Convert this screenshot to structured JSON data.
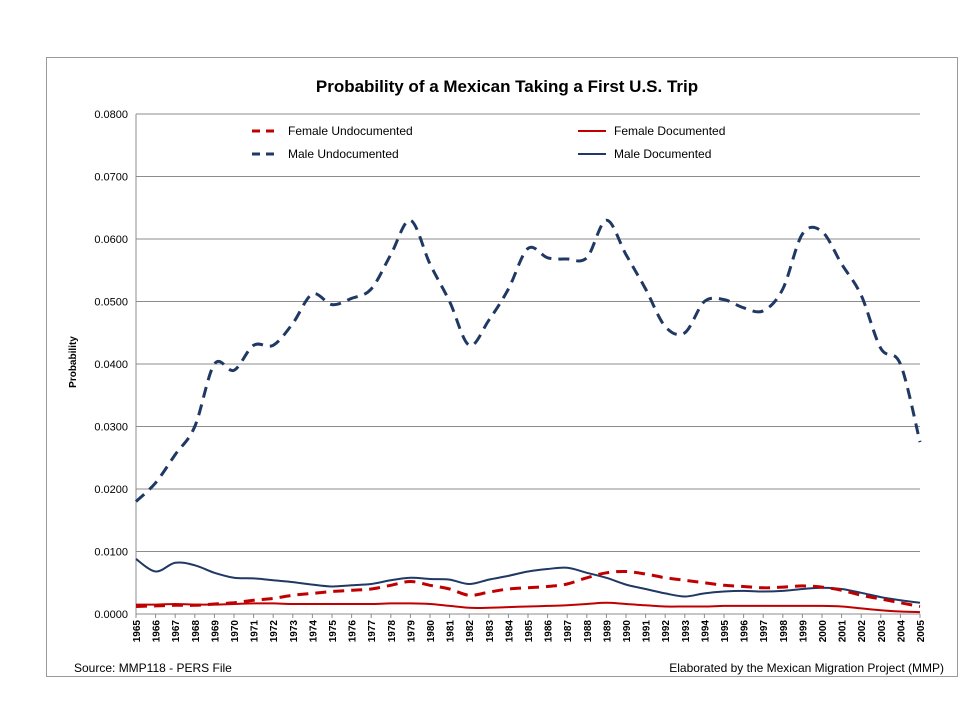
{
  "chart_data": {
    "type": "line",
    "title": "Probability of a Mexican Taking a First U.S. Trip",
    "ylabel": "Probability",
    "xlabel": "",
    "ylim": [
      0,
      0.08
    ],
    "yticks": [
      "0.0000",
      "0.0100",
      "0.0200",
      "0.0300",
      "0.0400",
      "0.0500",
      "0.0600",
      "0.0700",
      "0.0800"
    ],
    "grid": true,
    "legend_position": "top",
    "x": [
      1965,
      1966,
      1967,
      1968,
      1969,
      1970,
      1971,
      1972,
      1973,
      1974,
      1975,
      1976,
      1977,
      1978,
      1979,
      1980,
      1981,
      1982,
      1983,
      1984,
      1985,
      1986,
      1987,
      1988,
      1989,
      1990,
      1991,
      1992,
      1993,
      1994,
      1995,
      1996,
      1997,
      1998,
      1999,
      2000,
      2001,
      2002,
      2003,
      2004,
      2005
    ],
    "series": [
      {
        "name": "Female Undocumented",
        "color": "#c00000",
        "style": "dashed",
        "values": [
          0.0012,
          0.0013,
          0.0014,
          0.0014,
          0.0016,
          0.0018,
          0.0022,
          0.0025,
          0.003,
          0.0033,
          0.0036,
          0.0038,
          0.004,
          0.0046,
          0.0052,
          0.0046,
          0.004,
          0.003,
          0.0035,
          0.004,
          0.0042,
          0.0044,
          0.0048,
          0.0058,
          0.0066,
          0.0068,
          0.0064,
          0.0058,
          0.0054,
          0.005,
          0.0046,
          0.0044,
          0.0042,
          0.0043,
          0.0045,
          0.0043,
          0.0038,
          0.003,
          0.0024,
          0.0018,
          0.0012
        ]
      },
      {
        "name": "Female Documented",
        "color": "#c00000",
        "style": "solid",
        "values": [
          0.0015,
          0.0015,
          0.0016,
          0.0015,
          0.0015,
          0.0016,
          0.0017,
          0.0017,
          0.0016,
          0.0016,
          0.0016,
          0.0016,
          0.0016,
          0.0017,
          0.0017,
          0.0016,
          0.0013,
          0.001,
          0.001,
          0.0011,
          0.0012,
          0.0013,
          0.0014,
          0.0016,
          0.0018,
          0.0016,
          0.0014,
          0.0012,
          0.0012,
          0.0012,
          0.0013,
          0.0013,
          0.0013,
          0.0013,
          0.0013,
          0.0013,
          0.0012,
          0.0009,
          0.0006,
          0.0004,
          0.0003
        ]
      },
      {
        "name": "Male Undocumented",
        "color": "#1f3864",
        "style": "dashed",
        "values": [
          0.018,
          0.021,
          0.0255,
          0.03,
          0.04,
          0.039,
          0.043,
          0.043,
          0.0465,
          0.0512,
          0.0495,
          0.0505,
          0.052,
          0.0575,
          0.063,
          0.056,
          0.05,
          0.043,
          0.047,
          0.052,
          0.0585,
          0.057,
          0.0568,
          0.057,
          0.063,
          0.0575,
          0.052,
          0.046,
          0.045,
          0.05,
          0.0503,
          0.049,
          0.0485,
          0.052,
          0.0608,
          0.0612,
          0.056,
          0.051,
          0.0425,
          0.04,
          0.0275
        ]
      },
      {
        "name": "Male Documented",
        "color": "#1f3864",
        "style": "solid",
        "values": [
          0.0088,
          0.0068,
          0.0082,
          0.0078,
          0.0066,
          0.0058,
          0.0057,
          0.0054,
          0.0051,
          0.0047,
          0.0044,
          0.0046,
          0.0048,
          0.0054,
          0.0058,
          0.0056,
          0.0055,
          0.0048,
          0.0055,
          0.0061,
          0.0068,
          0.0072,
          0.0074,
          0.0066,
          0.0058,
          0.0047,
          0.004,
          0.0033,
          0.0028,
          0.0033,
          0.0036,
          0.0037,
          0.0036,
          0.0037,
          0.004,
          0.0042,
          0.004,
          0.0034,
          0.0027,
          0.0022,
          0.0018
        ]
      }
    ]
  },
  "footer": {
    "source": "Source: MMP118 - PERS File",
    "credit": "Elaborated by the Mexican Migration Project (MMP)"
  }
}
